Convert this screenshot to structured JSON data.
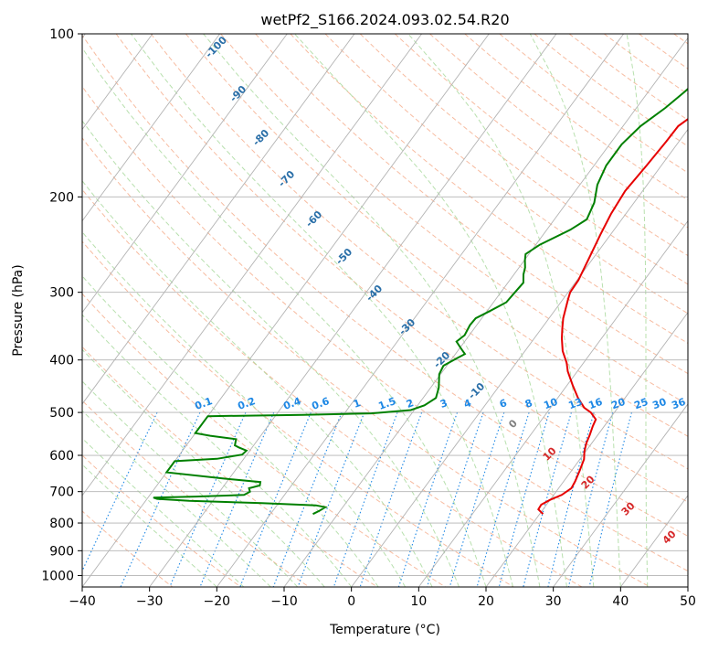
{
  "chart_data": {
    "type": "line",
    "title": "wetPf2_S166.2024.093.02.54.R20",
    "xlabel": "Temperature (°C)",
    "ylabel": "Pressure (hPa)",
    "xlim": [
      -40,
      50
    ],
    "ylim": [
      1050,
      100
    ],
    "y_scale": "log",
    "grid": true,
    "x_ticks": [
      -40,
      -30,
      -20,
      -10,
      0,
      10,
      20,
      30,
      40,
      50
    ],
    "y_ticks": [
      100,
      200,
      300,
      400,
      500,
      600,
      700,
      800,
      900,
      1000
    ],
    "x_tick_labels": [
      "−40",
      "−30",
      "−20",
      "−10",
      "0",
      "10",
      "20",
      "30",
      "40",
      "50"
    ],
    "y_tick_labels": [
      "100",
      "200",
      "300",
      "400",
      "500",
      "600",
      "700",
      "800",
      "900",
      "1000"
    ],
    "series": [
      {
        "color": "#e60000",
        "points": [
          [
            20.5,
            770
          ],
          [
            19.3,
            755
          ],
          [
            19.2,
            740
          ],
          [
            20.0,
            725
          ],
          [
            21.2,
            710
          ],
          [
            21.9,
            690
          ],
          [
            21.7,
            670
          ],
          [
            21.2,
            640
          ],
          [
            20.6,
            610
          ],
          [
            19.8,
            590
          ],
          [
            19.2,
            570
          ],
          [
            18.8,
            550
          ],
          [
            18.3,
            530
          ],
          [
            18.0,
            515
          ],
          [
            16.5,
            500
          ],
          [
            15.0,
            490
          ],
          [
            13.0,
            470
          ],
          [
            10.8,
            445
          ],
          [
            8.6,
            420
          ],
          [
            7.5,
            405
          ],
          [
            5.6,
            385
          ],
          [
            4.1,
            365
          ],
          [
            3.1,
            350
          ],
          [
            2.1,
            335
          ],
          [
            0.8,
            310
          ],
          [
            0.3,
            300
          ],
          [
            0.2,
            285
          ],
          [
            -0.6,
            260
          ],
          [
            -1.5,
            235
          ],
          [
            -2.2,
            215
          ],
          [
            -2.6,
            195
          ],
          [
            -2.2,
            175
          ],
          [
            -1.9,
            158
          ],
          [
            -1.8,
            148
          ],
          [
            -0.7,
            141
          ],
          [
            2.1,
            133
          ],
          [
            5.2,
            126
          ],
          [
            7.1,
            120
          ],
          [
            7.8,
            114
          ],
          [
            9.1,
            109
          ],
          [
            11.9,
            104
          ],
          [
            13.4,
            100
          ]
        ]
      },
      {
        "color": "#008000",
        "points": [
          [
            -13.7,
            770
          ],
          [
            -13.1,
            760
          ],
          [
            -12.6,
            748
          ],
          [
            -14.2,
            742
          ],
          [
            -22.5,
            735
          ],
          [
            -33.5,
            728
          ],
          [
            -38.5,
            722
          ],
          [
            -39.2,
            718
          ],
          [
            -33.0,
            715
          ],
          [
            -26.0,
            710
          ],
          [
            -25.5,
            700
          ],
          [
            -26.0,
            690
          ],
          [
            -24.7,
            682
          ],
          [
            -25.0,
            672
          ],
          [
            -31.0,
            662
          ],
          [
            -40.0,
            645
          ],
          [
            -40.0,
            615
          ],
          [
            -34.0,
            609
          ],
          [
            -30.7,
            598
          ],
          [
            -30.5,
            588
          ],
          [
            -32.0,
            580
          ],
          [
            -32.8,
            575
          ],
          [
            -33.3,
            560
          ],
          [
            -37.5,
            552
          ],
          [
            -40.0,
            546
          ],
          [
            -40.0,
            508
          ],
          [
            -26.0,
            505
          ],
          [
            -16.0,
            502
          ],
          [
            -10.5,
            495
          ],
          [
            -9.0,
            485
          ],
          [
            -8.1,
            470
          ],
          [
            -8.8,
            450
          ],
          [
            -10.2,
            425
          ],
          [
            -10.5,
            410
          ],
          [
            -9.4,
            398
          ],
          [
            -8.6,
            390
          ],
          [
            -9.9,
            380
          ],
          [
            -11.2,
            370
          ],
          [
            -10.7,
            360
          ],
          [
            -11.0,
            345
          ],
          [
            -10.9,
            335
          ],
          [
            -9.6,
            325
          ],
          [
            -8.1,
            313
          ],
          [
            -7.9,
            300
          ],
          [
            -7.7,
            288
          ],
          [
            -8.6,
            278
          ],
          [
            -9.1,
            270
          ],
          [
            -9.9,
            262
          ],
          [
            -10.5,
            255
          ],
          [
            -9.4,
            245
          ],
          [
            -6.5,
            230
          ],
          [
            -5.2,
            220
          ],
          [
            -5.9,
            205
          ],
          [
            -7.4,
            190
          ],
          [
            -8.2,
            175
          ],
          [
            -8.2,
            160
          ],
          [
            -7.4,
            148
          ],
          [
            -5.7,
            137
          ],
          [
            -4.6,
            128
          ],
          [
            -3.7,
            120
          ],
          [
            -2.9,
            113
          ],
          [
            -1.9,
            108
          ],
          [
            -0.6,
            103
          ],
          [
            0.5,
            100
          ]
        ]
      }
    ],
    "dry_adiabat_labels": [
      "-100",
      "-90",
      "-80",
      "-70",
      "-60",
      "-50",
      "-40",
      "-30",
      "-20",
      "-10",
      "0",
      "10",
      "20",
      "30",
      "40"
    ],
    "mixing_ratio_labels": [
      "0.1",
      "0.2",
      "0.4",
      "0.6",
      "1",
      "1.5",
      "2",
      "3",
      "4",
      "6",
      "8",
      "10",
      "13",
      "16",
      "20",
      "25",
      "30",
      "36"
    ],
    "colors": {
      "temperature": "#e60000",
      "dewpoint": "#008000",
      "isotherm": "#b3b3b3",
      "isobar": "#b3b3b3",
      "dry_adiabat": "#f4a582",
      "moist_adiabat": "#a6d89a",
      "mixing_ratio": "#1e88e5",
      "label_blue": "#2a6fa8",
      "label_red": "#d62728"
    }
  }
}
